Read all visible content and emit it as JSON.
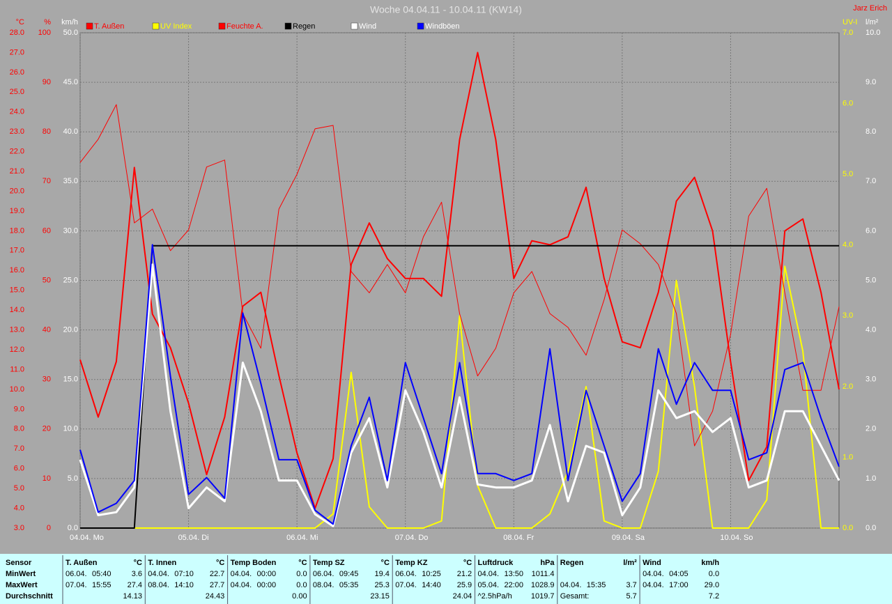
{
  "chart_data": {
    "type": "line",
    "title": "Woche 04.04.11 - 10.04.11 (KW14)",
    "author": "Jarz Erich",
    "xlim": [
      0,
      168
    ],
    "xticks": [
      {
        "value": 0,
        "label": "04.04. Mo"
      },
      {
        "value": 24,
        "label": "05.04. Di"
      },
      {
        "value": 48,
        "label": "06.04. Mi"
      },
      {
        "value": 72,
        "label": "07.04. Do"
      },
      {
        "value": 96,
        "label": "08.04. Fr"
      },
      {
        "value": 120,
        "label": "09.04. Sa"
      },
      {
        "value": 144,
        "label": "10.04. So"
      }
    ],
    "axes": [
      {
        "unit": "°C",
        "color": "#ff0000",
        "lim": [
          3,
          28
        ],
        "ticks": [
          {
            "value": 3,
            "label": "3.0"
          },
          {
            "value": 4,
            "label": "4.0"
          },
          {
            "value": 5,
            "label": "5.0"
          },
          {
            "value": 6,
            "label": "6.0"
          },
          {
            "value": 7,
            "label": "7.0"
          },
          {
            "value": 8,
            "label": "8.0"
          },
          {
            "value": 9,
            "label": "9.0"
          },
          {
            "value": 10,
            "label": "10.0"
          },
          {
            "value": 11,
            "label": "11.0"
          },
          {
            "value": 12,
            "label": "12.0"
          },
          {
            "value": 13,
            "label": "13.0"
          },
          {
            "value": 14,
            "label": "14.0"
          },
          {
            "value": 15,
            "label": "15.0"
          },
          {
            "value": 16,
            "label": "16.0"
          },
          {
            "value": 17,
            "label": "17.0"
          },
          {
            "value": 18,
            "label": "18.0"
          },
          {
            "value": 19,
            "label": "19.0"
          },
          {
            "value": 20,
            "label": "20.0"
          },
          {
            "value": 21,
            "label": "21.0"
          },
          {
            "value": 22,
            "label": "22.0"
          },
          {
            "value": 23,
            "label": "23.0"
          },
          {
            "value": 24,
            "label": "24.0"
          },
          {
            "value": 25,
            "label": "25.0"
          },
          {
            "value": 26,
            "label": "26.0"
          },
          {
            "value": 27,
            "label": "27.0"
          },
          {
            "value": 28,
            "label": "28.0"
          }
        ]
      },
      {
        "unit": "%",
        "color": "#ff0000",
        "lim": [
          0,
          100
        ],
        "ticks": [
          0,
          10,
          20,
          30,
          40,
          50,
          60,
          70,
          80,
          90,
          100
        ]
      },
      {
        "unit": "km/h",
        "color": "#ffffff",
        "lim": [
          0,
          50
        ],
        "grid": true,
        "ticks": [
          {
            "value": 0,
            "label": "0.0"
          },
          {
            "value": 5,
            "label": "5.0"
          },
          {
            "value": 10,
            "label": "10.0"
          },
          {
            "value": 15,
            "label": "15.0"
          },
          {
            "value": 20,
            "label": "20.0"
          },
          {
            "value": 25,
            "label": "25.0"
          },
          {
            "value": 30,
            "label": "30.0"
          },
          {
            "value": 35,
            "label": "35.0"
          },
          {
            "value": 40,
            "label": "40.0"
          },
          {
            "value": 45,
            "label": "45.0"
          },
          {
            "value": 50,
            "label": "50.0"
          }
        ]
      },
      {
        "unit": "UV-I",
        "color": "#ffff00",
        "lim": [
          0,
          7
        ],
        "ticks": [
          {
            "value": 0,
            "label": "0.0"
          },
          {
            "value": 1,
            "label": "1.0"
          },
          {
            "value": 2,
            "label": "2.0"
          },
          {
            "value": 3,
            "label": "3.0"
          },
          {
            "value": 4,
            "label": "4.0"
          },
          {
            "value": 5,
            "label": "5.0"
          },
          {
            "value": 6,
            "label": "6.0"
          },
          {
            "value": 7,
            "label": "7.0"
          }
        ]
      },
      {
        "unit": "l/m²",
        "color": "#ffffff",
        "lim": [
          0,
          10
        ],
        "ticks": [
          {
            "value": 0,
            "label": "0.0"
          },
          {
            "value": 1,
            "label": "1.0"
          },
          {
            "value": 2,
            "label": "2.0"
          },
          {
            "value": 3,
            "label": "3.0"
          },
          {
            "value": 4,
            "label": "4.0"
          },
          {
            "value": 5,
            "label": "5.0"
          },
          {
            "value": 6,
            "label": "6.0"
          },
          {
            "value": 7,
            "label": "7.0"
          },
          {
            "value": 8,
            "label": "8.0"
          },
          {
            "value": 9,
            "label": "9.0"
          },
          {
            "value": 10,
            "label": "10.0"
          }
        ]
      }
    ],
    "x": [
      0,
      4,
      8,
      12,
      16,
      20,
      24,
      28,
      32,
      36,
      40,
      44,
      48,
      52,
      56,
      60,
      64,
      68,
      72,
      76,
      80,
      84,
      88,
      92,
      96,
      100,
      104,
      108,
      112,
      116,
      120,
      124,
      128,
      132,
      136,
      140,
      144,
      148,
      152,
      156,
      160,
      164,
      168
    ],
    "series": [
      {
        "name": "T. Außen",
        "color": "#ff0000",
        "width": 2,
        "axis": 0,
        "values": [
          11.5,
          8.6,
          11.4,
          21.2,
          13.8,
          12.1,
          9.3,
          5.7,
          8.6,
          14.2,
          14.9,
          10.7,
          6.8,
          4.0,
          6.5,
          16.3,
          18.4,
          16.6,
          15.6,
          15.6,
          14.7,
          22.6,
          27.0,
          22.6,
          15.6,
          17.5,
          17.3,
          17.7,
          20.2,
          15.6,
          12.4,
          12.1,
          14.9,
          19.5,
          20.7,
          18.0,
          11.4,
          5.4,
          7.1,
          18.0,
          18.6,
          14.9,
          10.0
        ]
      },
      {
        "name": "UV Index",
        "color": "#ffff00",
        "width": 2,
        "axis": 3,
        "values": [
          0,
          0,
          0,
          0,
          0,
          0,
          0,
          0,
          0,
          0,
          0,
          0,
          0,
          0,
          0.2,
          2.2,
          0.3,
          0,
          0,
          0,
          0.1,
          3.0,
          0.6,
          0,
          0,
          0,
          0.2,
          0.8,
          2.0,
          0.1,
          0,
          0,
          0.8,
          3.5,
          2.0,
          0,
          0,
          0,
          0.4,
          3.7,
          2.5,
          0,
          0
        ]
      },
      {
        "name": "Feuchte A.",
        "color": "#ff0000",
        "width": 1,
        "axis": 1,
        "values": [
          73.8,
          78.5,
          85.5,
          61.6,
          64.4,
          56.0,
          60.2,
          72.9,
          74.3,
          43.3,
          36.3,
          64.4,
          71.4,
          80.6,
          81.3,
          51.8,
          47.5,
          53.2,
          47.5,
          58.8,
          65.8,
          43.3,
          30.7,
          36.3,
          47.5,
          51.8,
          43.3,
          40.5,
          34.9,
          46.1,
          60.2,
          57.4,
          53.2,
          43.3,
          16.6,
          23.6,
          39.1,
          63.0,
          68.6,
          47.5,
          27.8,
          27.8,
          44.7
        ]
      },
      {
        "name": "Regen",
        "color": "#000000",
        "width": 2,
        "axis": 4,
        "values": [
          0,
          0,
          0,
          0,
          5.7,
          5.7,
          5.7,
          5.7,
          5.7,
          5.7,
          5.7,
          5.7,
          5.7,
          5.7,
          5.7,
          5.7,
          5.7,
          5.7,
          5.7,
          5.7,
          5.7,
          5.7,
          5.7,
          5.7,
          5.7,
          5.7,
          5.7,
          5.7,
          5.7,
          5.7,
          5.7,
          5.7,
          5.7,
          5.7,
          5.7,
          5.7,
          5.7,
          5.7,
          5.7,
          5.7,
          5.7,
          5.7,
          5.7
        ]
      },
      {
        "name": "Wind",
        "color": "#ffffff",
        "width": 3,
        "axis": 2,
        "values": [
          6.9,
          1.3,
          1.6,
          4.1,
          26.6,
          11.8,
          2.0,
          4.1,
          2.7,
          16.7,
          11.8,
          4.8,
          4.8,
          1.4,
          0.2,
          7.6,
          11.1,
          4.1,
          13.9,
          9.7,
          4.1,
          13.2,
          4.4,
          4.1,
          4.1,
          4.8,
          10.4,
          2.7,
          8.3,
          7.6,
          1.3,
          4.1,
          13.9,
          11.1,
          11.8,
          9.7,
          11.1,
          4.1,
          4.8,
          11.8,
          11.8,
          8.3,
          4.8
        ]
      },
      {
        "name": "Windböen",
        "color": "#0000ff",
        "width": 2,
        "axis": 2,
        "values": [
          7.9,
          1.6,
          2.5,
          4.8,
          28.6,
          15.3,
          3.4,
          5.1,
          3.0,
          21.7,
          14.6,
          6.9,
          6.9,
          1.8,
          0.4,
          8.3,
          13.2,
          4.8,
          16.7,
          11.1,
          5.5,
          16.7,
          5.5,
          5.5,
          4.8,
          5.5,
          18.1,
          4.8,
          13.9,
          8.3,
          2.7,
          5.5,
          18.1,
          12.5,
          16.7,
          13.9,
          13.9,
          6.9,
          7.6,
          16.0,
          16.7,
          11.1,
          6.2
        ]
      }
    ]
  },
  "table": {
    "row_labels": [
      "Sensor",
      "MinWert",
      "MaxWert",
      "Durchschnitt"
    ],
    "groups": [
      {
        "name": "T. Außen",
        "unit": "°C",
        "min": [
          "06.04.",
          "05:40",
          "3.6"
        ],
        "max": [
          "07.04.",
          "15:55",
          "27.4"
        ],
        "avg": {
          "value": "14.13"
        }
      },
      {
        "name": "T. Innen",
        "unit": "°C",
        "min": [
          "04.04.",
          "07:10",
          "22.7"
        ],
        "max": [
          "08.04.",
          "14:10",
          "27.7"
        ],
        "avg": {
          "value": "24.43"
        }
      },
      {
        "name": "Temp Boden",
        "unit": "°C",
        "min": [
          "04.04.",
          "00:00",
          "0.0"
        ],
        "max": [
          "04.04.",
          "00:00",
          "0.0"
        ],
        "avg": {
          "value": "0.00"
        }
      },
      {
        "name": "Temp SZ",
        "unit": "°C",
        "min": [
          "06.04.",
          "09:45",
          "19.4"
        ],
        "max": [
          "08.04.",
          "05:35",
          "25.3"
        ],
        "avg": {
          "value": "23.15"
        }
      },
      {
        "name": "Temp KZ",
        "unit": "°C",
        "min": [
          "06.04.",
          "10:25",
          "21.2"
        ],
        "max": [
          "07.04.",
          "14:40",
          "25.9"
        ],
        "avg": {
          "value": "24.04"
        }
      },
      {
        "name": "Luftdruck",
        "unit": "hPa",
        "min": [
          "04.04.",
          "13:50",
          "1011.4"
        ],
        "max": [
          "05.04.",
          "22:00",
          "1028.9"
        ],
        "avg": {
          "note": "^2.5hPa/h",
          "value": "1019.7"
        }
      },
      {
        "name": "Regen",
        "unit": "l/m²",
        "min": null,
        "max": [
          "04.04.",
          "15:35",
          "3.7"
        ],
        "avg": {
          "note": "Gesamt:",
          "value": "5.7"
        }
      },
      {
        "name": "Wind",
        "unit": "km/h",
        "min": [
          "04.04.",
          "04:05",
          "0.0"
        ],
        "max": [
          "04.04.",
          "17:00",
          "29.0"
        ],
        "avg": {
          "value": "7.2"
        }
      }
    ]
  }
}
